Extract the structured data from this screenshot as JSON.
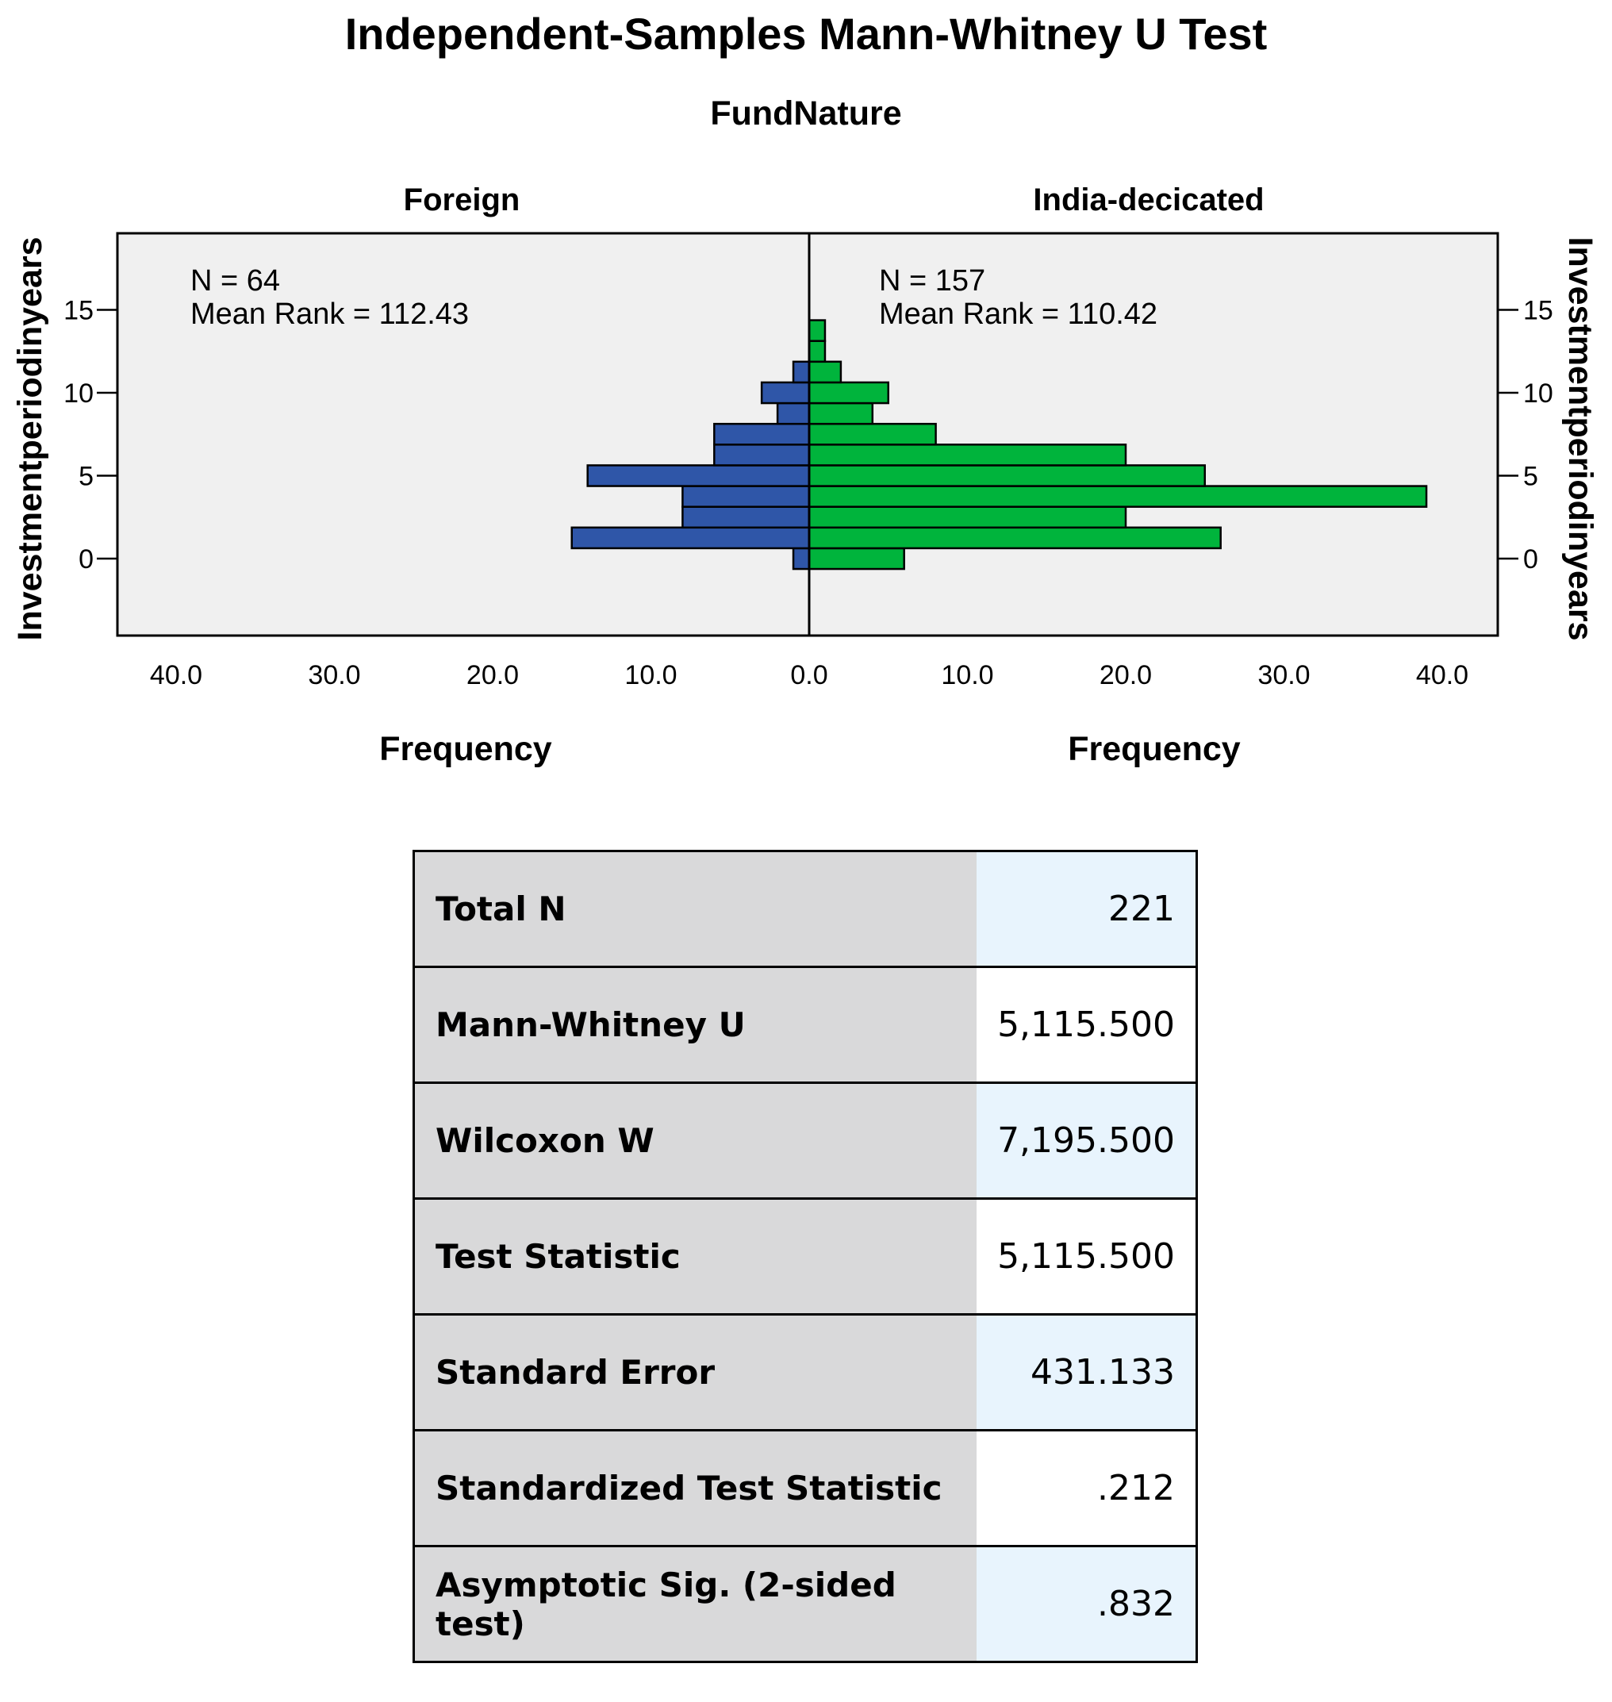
{
  "chart_data": {
    "type": "bar",
    "orientation": "horizontal-back-to-back",
    "title": "Independent-Samples Mann-Whitney U Test",
    "group_variable": "FundNature",
    "ylabel": "Investmentperiodinyears",
    "xlabel": "Frequency",
    "ylim": [
      -4.7,
      19.2
    ],
    "y_ticks": [
      0,
      5,
      10,
      15
    ],
    "x_ticks": [
      "40.0",
      "30.0",
      "20.0",
      "10.0",
      "0.0"
    ],
    "x_ticks_right": [
      "10.0",
      "20.0",
      "30.0",
      "40.0"
    ],
    "xlim": [
      0,
      40
    ],
    "bin_width": 1.25,
    "bins": [
      0,
      1.25,
      2.5,
      3.75,
      5,
      6.25,
      7.5,
      8.75,
      10,
      11.25,
      12.5,
      13.75,
      15
    ],
    "grid": false,
    "panels": [
      {
        "name": "Foreign",
        "side": "left",
        "color": "#2f56a8",
        "n_label": "N = 64",
        "rank_label": "Mean Rank = 112.43",
        "frequencies": [
          1,
          15,
          8,
          8,
          14,
          6,
          6,
          2,
          3,
          1,
          0,
          0,
          0
        ]
      },
      {
        "name": "India-decicated",
        "side": "right",
        "color": "#00b43c",
        "n_label": "N = 157",
        "rank_label": "Mean Rank = 110.42",
        "frequencies": [
          6,
          26,
          20,
          39,
          25,
          20,
          8,
          4,
          5,
          2,
          1,
          1,
          0
        ]
      }
    ]
  },
  "stats_table": [
    {
      "label": "Total N",
      "value": "221"
    },
    {
      "label": "Mann-Whitney U",
      "value": "5,115.500"
    },
    {
      "label": "Wilcoxon W",
      "value": "7,195.500"
    },
    {
      "label": "Test Statistic",
      "value": "5,115.500"
    },
    {
      "label": "Standard Error",
      "value": "431.133"
    },
    {
      "label": "Standardized Test Statistic",
      "value": ".212"
    },
    {
      "label": "Asymptotic Sig. (2-sided test)",
      "value": ".832"
    }
  ]
}
